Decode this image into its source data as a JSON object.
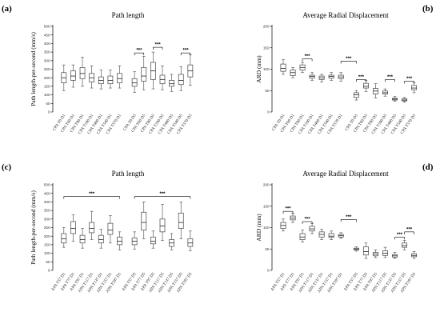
{
  "panel_letters": [
    "(a)",
    "(b)",
    "(c)",
    "(d)"
  ],
  "chart_data": [
    {
      "type": "box",
      "letter": "(a)",
      "title": "Path length",
      "ylabel": "Path length-per-second (mm/s)",
      "ylim": [
        0,
        500
      ],
      "yticks": [
        0,
        50,
        100,
        150,
        200,
        250,
        300,
        350,
        400,
        450,
        500
      ],
      "categories": [
        "CPA T0 D1",
        "CPA T60 D1",
        "CPA T80 D1",
        "CPA T100 D1",
        "CPA T400 D1",
        "CPA T540 D1",
        "CPA T570 D1",
        "CPA T0 D5",
        "CPA T60 D5",
        "CPA T80 D5",
        "CPA T100 D5",
        "CPA T400 D5",
        "CPA T540 D5",
        "CPA T570 D5"
      ],
      "gap_after": 7,
      "boxes": [
        {
          "min": 125,
          "q1": 170,
          "median": 200,
          "q3": 230,
          "max": 275
        },
        {
          "min": 145,
          "q1": 185,
          "median": 210,
          "q3": 240,
          "max": 275
        },
        {
          "min": 150,
          "q1": 195,
          "median": 225,
          "q3": 260,
          "max": 320
        },
        {
          "min": 140,
          "q1": 175,
          "median": 200,
          "q3": 225,
          "max": 270
        },
        {
          "min": 135,
          "q1": 165,
          "median": 185,
          "q3": 205,
          "max": 245
        },
        {
          "min": 140,
          "q1": 165,
          "median": 185,
          "q3": 210,
          "max": 245
        },
        {
          "min": 140,
          "q1": 170,
          "median": 195,
          "q3": 225,
          "max": 270
        },
        {
          "min": 115,
          "q1": 150,
          "median": 170,
          "q3": 195,
          "max": 235
        },
        {
          "min": 130,
          "q1": 180,
          "median": 210,
          "q3": 260,
          "max": 325
        },
        {
          "min": 135,
          "q1": 190,
          "median": 240,
          "q3": 290,
          "max": 350
        },
        {
          "min": 130,
          "q1": 165,
          "median": 190,
          "q3": 215,
          "max": 270
        },
        {
          "min": 120,
          "q1": 150,
          "median": 165,
          "q3": 185,
          "max": 220
        },
        {
          "min": 125,
          "q1": 160,
          "median": 185,
          "q3": 220,
          "max": 265
        },
        {
          "min": 155,
          "q1": 205,
          "median": 240,
          "q3": 275,
          "max": 335
        }
      ],
      "significance": [
        {
          "from": 7,
          "to": 8,
          "label": "***",
          "y": 345
        },
        {
          "from": 9,
          "to": 10,
          "label": "***",
          "y": 378
        },
        {
          "from": 12,
          "to": 13,
          "label": "***",
          "y": 345
        }
      ]
    },
    {
      "type": "box",
      "letter": "(b)",
      "title": "Average Radial Displacement",
      "ylabel": "ARD (mm)",
      "ylim": [
        0,
        200
      ],
      "yticks": [
        0,
        50,
        100,
        150,
        200
      ],
      "categories": [
        "CPA T0 D1",
        "CPA T60 D1",
        "CPA T80 D1",
        "CPA T100 D1",
        "CPA T400 D1",
        "CPA T540 D1",
        "CPA T570 D1",
        "CPA T0 D5",
        "CPA T60 D5",
        "CPA T80 D5",
        "CPA T100 D5",
        "CPA T400 D5",
        "CPA T540 D5",
        "CPA T570 D5"
      ],
      "gap_after": 7,
      "boxes": [
        {
          "min": 88,
          "q1": 95,
          "median": 102,
          "q3": 112,
          "max": 122
        },
        {
          "min": 80,
          "q1": 85,
          "median": 92,
          "q3": 98,
          "max": 104
        },
        {
          "min": 92,
          "q1": 98,
          "median": 104,
          "q3": 110,
          "max": 116
        },
        {
          "min": 74,
          "q1": 79,
          "median": 83,
          "q3": 86,
          "max": 92
        },
        {
          "min": 70,
          "q1": 76,
          "median": 80,
          "q3": 84,
          "max": 88
        },
        {
          "min": 74,
          "q1": 79,
          "median": 83,
          "q3": 86,
          "max": 92
        },
        {
          "min": 72,
          "q1": 78,
          "median": 82,
          "q3": 86,
          "max": 92
        },
        {
          "min": 28,
          "q1": 34,
          "median": 40,
          "q3": 45,
          "max": 50
        },
        {
          "min": 48,
          "q1": 56,
          "median": 60,
          "q3": 67,
          "max": 74
        },
        {
          "min": 33,
          "q1": 42,
          "median": 49,
          "q3": 55,
          "max": 66
        },
        {
          "min": 37,
          "q1": 42,
          "median": 45,
          "q3": 49,
          "max": 54
        },
        {
          "min": 25,
          "q1": 28,
          "median": 30,
          "q3": 32,
          "max": 36
        },
        {
          "min": 23,
          "q1": 26,
          "median": 28,
          "q3": 31,
          "max": 34
        },
        {
          "min": 45,
          "q1": 52,
          "median": 56,
          "q3": 62,
          "max": 68
        }
      ],
      "significance": [
        {
          "from": 2,
          "to": 3,
          "label": "***",
          "y": 124
        },
        {
          "from": 6,
          "to": 7,
          "label": "***",
          "y": 119
        },
        {
          "from": 7,
          "to": 8,
          "label": "***",
          "y": 76
        },
        {
          "from": 10,
          "to": 11,
          "label": "***",
          "y": 76
        },
        {
          "from": 12,
          "to": 13,
          "label": "***",
          "y": 72
        }
      ]
    },
    {
      "type": "box",
      "letter": "(c)",
      "title": "Path length",
      "ylabel": "Path length-per-second (mm/s)",
      "ylim": [
        0,
        500
      ],
      "yticks": [
        0,
        50,
        100,
        150,
        200,
        250,
        300,
        350,
        400,
        450,
        500
      ],
      "categories": [
        "APA T57 D1",
        "APA T77 D1",
        "APA T97 D1",
        "APA T117 D1",
        "APA T137 D1",
        "APA T157 D1",
        "APA T597 D1",
        "APA T57 D5",
        "APA T77 D5",
        "APA T97 D5",
        "APA T117 D5",
        "APA T137 D5",
        "APA T157 D5",
        "APA T597 D5"
      ],
      "gap_after": 7,
      "boxes": [
        {
          "min": 135,
          "q1": 160,
          "median": 185,
          "q3": 215,
          "max": 250
        },
        {
          "min": 170,
          "q1": 215,
          "median": 245,
          "q3": 285,
          "max": 325
        },
        {
          "min": 130,
          "q1": 160,
          "median": 180,
          "q3": 205,
          "max": 245
        },
        {
          "min": 180,
          "q1": 220,
          "median": 245,
          "q3": 280,
          "max": 345
        },
        {
          "min": 130,
          "q1": 160,
          "median": 180,
          "q3": 205,
          "max": 240
        },
        {
          "min": 160,
          "q1": 210,
          "median": 235,
          "q3": 275,
          "max": 320
        },
        {
          "min": 120,
          "q1": 150,
          "median": 170,
          "q3": 195,
          "max": 225
        },
        {
          "min": 125,
          "q1": 150,
          "median": 170,
          "q3": 190,
          "max": 225
        },
        {
          "min": 185,
          "q1": 235,
          "median": 280,
          "q3": 340,
          "max": 400
        },
        {
          "min": 130,
          "q1": 155,
          "median": 170,
          "q3": 195,
          "max": 230
        },
        {
          "min": 175,
          "q1": 225,
          "median": 260,
          "q3": 300,
          "max": 385
        },
        {
          "min": 120,
          "q1": 140,
          "median": 160,
          "q3": 180,
          "max": 215
        },
        {
          "min": 185,
          "q1": 245,
          "median": 280,
          "q3": 335,
          "max": 400
        },
        {
          "min": 115,
          "q1": 140,
          "median": 160,
          "q3": 185,
          "max": 230
        }
      ],
      "significance": [
        {
          "from": 0,
          "to": 6,
          "label": "***",
          "y": 432
        },
        {
          "from": 7,
          "to": 13,
          "label": "***",
          "y": 432
        }
      ]
    },
    {
      "type": "box",
      "letter": "(d)",
      "title": "Average Radial Displacement",
      "ylabel": "ARD (mm)",
      "ylim": [
        0,
        200
      ],
      "yticks": [
        0,
        50,
        100,
        150,
        200
      ],
      "categories": [
        "APA T57 D1",
        "APA T77 D1",
        "APA T97 D1",
        "APA T117 D1",
        "APA T137 D1",
        "APA T157 D1",
        "APA T597 D1",
        "APA T57 D5",
        "APA T77 D5",
        "APA T97 D5",
        "APA T117 D5",
        "APA T137 D5",
        "APA T157 D5",
        "APA T597 D5"
      ],
      "gap_after": 7,
      "boxes": [
        {
          "min": 92,
          "q1": 98,
          "median": 105,
          "q3": 112,
          "max": 120
        },
        {
          "min": 112,
          "q1": 118,
          "median": 122,
          "q3": 127,
          "max": 134
        },
        {
          "min": 66,
          "q1": 72,
          "median": 78,
          "q3": 86,
          "max": 94
        },
        {
          "min": 86,
          "q1": 92,
          "median": 97,
          "q3": 103,
          "max": 110
        },
        {
          "min": 72,
          "q1": 78,
          "median": 84,
          "q3": 90,
          "max": 96
        },
        {
          "min": 72,
          "q1": 77,
          "median": 80,
          "q3": 86,
          "max": 92
        },
        {
          "min": 75,
          "q1": 78,
          "median": 81,
          "q3": 84,
          "max": 88
        },
        {
          "min": 45,
          "q1": 48,
          "median": 50,
          "q3": 52,
          "max": 55
        },
        {
          "min": 28,
          "q1": 36,
          "median": 44,
          "q3": 55,
          "max": 64
        },
        {
          "min": 30,
          "q1": 34,
          "median": 38,
          "q3": 42,
          "max": 48
        },
        {
          "min": 30,
          "q1": 35,
          "median": 40,
          "q3": 46,
          "max": 54
        },
        {
          "min": 28,
          "q1": 31,
          "median": 34,
          "q3": 37,
          "max": 42
        },
        {
          "min": 48,
          "q1": 54,
          "median": 58,
          "q3": 64,
          "max": 70
        },
        {
          "min": 28,
          "q1": 32,
          "median": 35,
          "q3": 39,
          "max": 44
        }
      ],
      "significance": [
        {
          "from": 0,
          "to": 1,
          "label": "***",
          "y": 138
        },
        {
          "from": 2,
          "to": 3,
          "label": "***",
          "y": 114
        },
        {
          "from": 6,
          "to": 7,
          "label": "***",
          "y": 119
        },
        {
          "from": 11,
          "to": 12,
          "label": "***",
          "y": 78
        },
        {
          "from": 12,
          "to": 13,
          "label": "***",
          "y": 90
        }
      ]
    }
  ]
}
